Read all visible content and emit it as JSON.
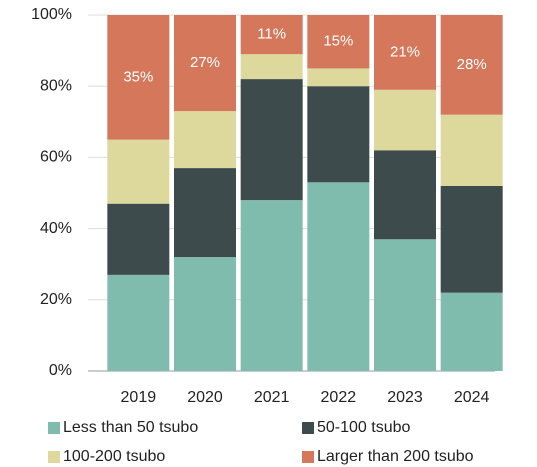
{
  "chart_data": {
    "type": "stacked_bar",
    "categories": [
      "2019",
      "2020",
      "2021",
      "2022",
      "2023",
      "2024"
    ],
    "series": [
      {
        "name": "Less than 50 tsubo",
        "color": "#80bcad",
        "values": [
          27,
          32,
          48,
          53,
          37,
          22
        ]
      },
      {
        "name": "50-100 tsubo",
        "color": "#3e4b4c",
        "values": [
          20,
          25,
          34,
          27,
          25,
          30
        ]
      },
      {
        "name": "100-200 tsubo",
        "color": "#ddd89b",
        "values": [
          18,
          16,
          7,
          5,
          17,
          20
        ]
      },
      {
        "name": "Larger than 200 tsubo",
        "color": "#d4775a",
        "values": [
          35,
          27,
          11,
          15,
          21,
          28
        ],
        "value_labels": [
          "35%",
          "27%",
          "11%",
          "15%",
          "21%",
          "28%"
        ]
      }
    ],
    "ylim": [
      0,
      100
    ],
    "yticks": [
      {
        "value": 0,
        "label": "0%"
      },
      {
        "value": 20,
        "label": "20%"
      },
      {
        "value": 40,
        "label": "40%"
      },
      {
        "value": 60,
        "label": "60%"
      },
      {
        "value": 80,
        "label": "80%"
      },
      {
        "value": 100,
        "label": "100%"
      }
    ],
    "grid": true
  }
}
